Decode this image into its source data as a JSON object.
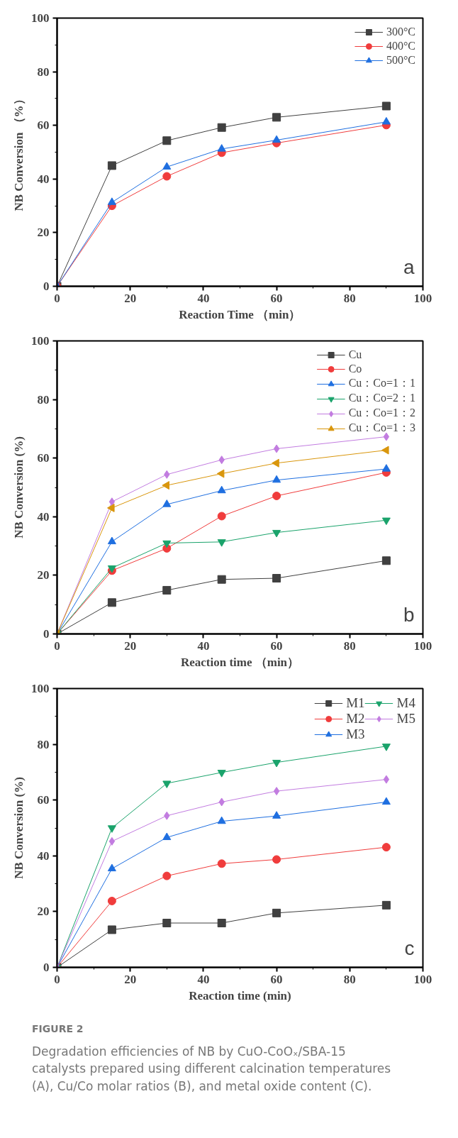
{
  "chart_data": [
    {
      "type": "line",
      "xlabel": "Reaction Time （min）",
      "ylabel": "NB Conversion （%）",
      "x": [
        0,
        15,
        30,
        45,
        60,
        90
      ],
      "xlim": [
        0,
        100
      ],
      "xticks": [
        0,
        20,
        40,
        60,
        80,
        100
      ],
      "ylim": [
        0,
        100
      ],
      "yticks": [
        0,
        20,
        40,
        60,
        80,
        100
      ],
      "grid": false,
      "legend": "top right",
      "annotations": [
        "a"
      ],
      "series": [
        {
          "name": "300°C",
          "color": "#404040",
          "marker": "square",
          "values": [
            0,
            45,
            54.3,
            59.2,
            63,
            67.2
          ]
        },
        {
          "name": "400°C",
          "color": "#f03c3c",
          "marker": "circle",
          "values": [
            0,
            30,
            41,
            49.8,
            53.4,
            60.1
          ]
        },
        {
          "name": "500°C",
          "color": "#1f6fe0",
          "marker": "triangle",
          "values": [
            0,
            31.3,
            44.5,
            51.2,
            54.5,
            61.3
          ]
        }
      ]
    },
    {
      "type": "line",
      "xlabel": "Reaction time （min）",
      "ylabel": "NB Conversion (%)",
      "x": [
        0,
        15,
        30,
        45,
        60,
        90
      ],
      "xlim": [
        0,
        100
      ],
      "xticks": [
        0,
        20,
        40,
        60,
        80,
        100
      ],
      "ylim": [
        0,
        100
      ],
      "yticks": [
        0,
        20,
        40,
        60,
        80,
        100
      ],
      "grid": false,
      "legend": "top right",
      "annotations": [
        "b"
      ],
      "series": [
        {
          "name": "Cu",
          "color": "#404040",
          "marker": "square",
          "values": [
            0,
            10.7,
            14.9,
            18.6,
            19.0,
            25.0
          ]
        },
        {
          "name": "Co",
          "color": "#f03c3c",
          "marker": "circle",
          "values": [
            0,
            21.6,
            29.2,
            40.2,
            47.1,
            55.1
          ]
        },
        {
          "name": "Cu：Co=1：1",
          "color": "#1f6fe0",
          "marker": "triangle",
          "values": [
            0,
            31.5,
            44.2,
            48.9,
            52.5,
            56.3
          ]
        },
        {
          "name": "Cu：Co=2：1",
          "color": "#1aa36b",
          "marker": "triangle_down",
          "values": [
            0,
            22.5,
            31.0,
            31.4,
            34.6,
            38.8
          ]
        },
        {
          "name": "Cu：Co=1：2",
          "color": "#c27ce0",
          "marker": "diamond",
          "values": [
            0,
            45.1,
            54.4,
            59.4,
            63.2,
            67.3
          ]
        },
        {
          "name": "Cu：Co=1：3",
          "color": "#d9960c",
          "marker": "triangle_left",
          "values": [
            0,
            43.0,
            50.7,
            54.7,
            58.3,
            62.7
          ]
        }
      ]
    },
    {
      "type": "line",
      "xlabel": "Reaction time (min)",
      "ylabel": "NB Conversion (%)",
      "x": [
        0,
        15,
        30,
        45,
        60,
        90
      ],
      "xlim": [
        0,
        100
      ],
      "xticks": [
        0,
        20,
        40,
        60,
        80,
        100
      ],
      "ylim": [
        0,
        100
      ],
      "yticks": [
        0,
        20,
        40,
        60,
        80,
        100
      ],
      "grid": false,
      "legend": "top right",
      "annotations": [
        "c",
        "FIGURE 2",
        "Degradation efficiencies of NB by CuO-CoOₓ/SBA-15 catalysts prepared using different calcination temperatures (A), Cu/Co molar ratios (B), and metal oxide content (C)."
      ],
      "series": [
        {
          "name": "M1",
          "color": "#404040",
          "marker": "square",
          "values": [
            0,
            13.5,
            15.9,
            15.9,
            19.5,
            22.3
          ]
        },
        {
          "name": "M2",
          "color": "#f03c3c",
          "marker": "circle",
          "values": [
            0,
            23.8,
            32.8,
            37.2,
            38.7,
            43.1
          ]
        },
        {
          "name": "M3",
          "color": "#1f6fe0",
          "marker": "triangle",
          "values": [
            0,
            35.4,
            46.6,
            52.4,
            54.3,
            59.3
          ]
        },
        {
          "name": "M4",
          "color": "#1aa36b",
          "marker": "triangle_down",
          "values": [
            0,
            50.0,
            66.0,
            69.9,
            73.5,
            79.3
          ]
        },
        {
          "name": "M5",
          "color": "#c27ce0",
          "marker": "diamond",
          "values": [
            0,
            45.2,
            54.4,
            59.3,
            63.2,
            67.4
          ]
        }
      ]
    }
  ]
}
